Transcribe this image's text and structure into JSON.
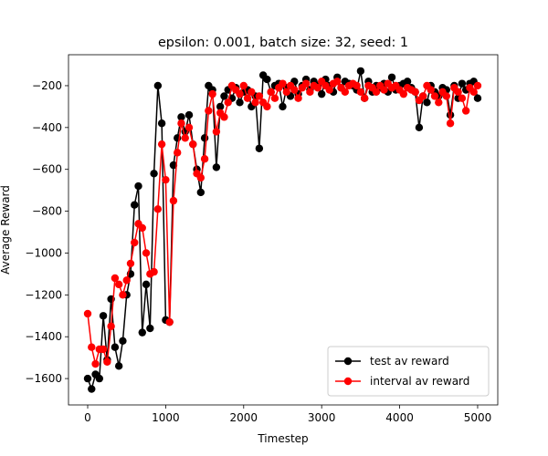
{
  "chart_data": {
    "type": "line",
    "title": "epsilon: 0.001, batch size: 32, seed: 1",
    "x_label": "Timestep",
    "y_label": "Average Reward",
    "x": [
      0,
      50,
      100,
      150,
      200,
      250,
      300,
      350,
      400,
      450,
      500,
      550,
      600,
      650,
      700,
      750,
      800,
      850,
      900,
      950,
      1000,
      1050,
      1100,
      1150,
      1200,
      1250,
      1300,
      1350,
      1400,
      1450,
      1500,
      1550,
      1600,
      1650,
      1700,
      1750,
      1800,
      1850,
      1900,
      1950,
      2000,
      2050,
      2100,
      2150,
      2200,
      2250,
      2300,
      2350,
      2400,
      2450,
      2500,
      2550,
      2600,
      2650,
      2700,
      2750,
      2800,
      2850,
      2900,
      2950,
      3000,
      3050,
      3100,
      3150,
      3200,
      3250,
      3300,
      3350,
      3400,
      3450,
      3500,
      3550,
      3600,
      3650,
      3700,
      3750,
      3800,
      3850,
      3900,
      3950,
      4000,
      4050,
      4100,
      4150,
      4200,
      4250,
      4300,
      4350,
      4400,
      4450,
      4500,
      4550,
      4600,
      4650,
      4700,
      4750,
      4800,
      4850,
      4900,
      4950,
      5000
    ],
    "series": [
      {
        "name": "test av reward",
        "color": "#000000",
        "values": [
          -1600,
          -1650,
          -1580,
          -1600,
          -1300,
          -1510,
          -1220,
          -1450,
          -1540,
          -1420,
          -1200,
          -1100,
          -770,
          -680,
          -1380,
          -1150,
          -1360,
          -620,
          -200,
          -380,
          -1320,
          -1330,
          -580,
          -450,
          -350,
          -420,
          -340,
          -480,
          -600,
          -710,
          -450,
          -200,
          -220,
          -590,
          -300,
          -250,
          -220,
          -260,
          -210,
          -280,
          -230,
          -220,
          -300,
          -250,
          -500,
          -150,
          -170,
          -230,
          -200,
          -190,
          -300,
          -210,
          -250,
          -180,
          -240,
          -200,
          -170,
          -220,
          -180,
          -200,
          -240,
          -170,
          -200,
          -230,
          -160,
          -210,
          -180,
          -190,
          -200,
          -220,
          -130,
          -260,
          -180,
          -230,
          -200,
          -210,
          -190,
          -230,
          -160,
          -220,
          -200,
          -190,
          -180,
          -210,
          -230,
          -400,
          -250,
          -280,
          -200,
          -230,
          -250,
          -210,
          -220,
          -340,
          -200,
          -260,
          -190,
          -220,
          -190,
          -180,
          -260
        ]
      },
      {
        "name": "interval av reward",
        "color": "#ff0000",
        "values": [
          -1290,
          -1450,
          -1530,
          -1460,
          -1460,
          -1520,
          -1350,
          -1120,
          -1150,
          -1200,
          -1130,
          -1050,
          -950,
          -860,
          -880,
          -1000,
          -1100,
          -1090,
          -790,
          -480,
          -650,
          -1330,
          -750,
          -520,
          -380,
          -450,
          -400,
          -480,
          -620,
          -640,
          -550,
          -320,
          -240,
          -420,
          -330,
          -350,
          -280,
          -200,
          -220,
          -240,
          -200,
          -260,
          -230,
          -280,
          -250,
          -280,
          -300,
          -230,
          -260,
          -210,
          -190,
          -230,
          -200,
          -220,
          -260,
          -210,
          -190,
          -230,
          -200,
          -210,
          -180,
          -200,
          -220,
          -190,
          -180,
          -210,
          -230,
          -200,
          -190,
          -200,
          -230,
          -260,
          -200,
          -210,
          -230,
          -200,
          -220,
          -190,
          -210,
          -200,
          -220,
          -240,
          -210,
          -220,
          -230,
          -270,
          -250,
          -200,
          -220,
          -250,
          -280,
          -230,
          -250,
          -380,
          -210,
          -230,
          -260,
          -320,
          -210,
          -230,
          -200
        ]
      }
    ],
    "xlim": [
      -246,
      5258
    ],
    "ylim": [
      -1726,
      -52
    ],
    "xticks": [
      0,
      1000,
      2000,
      3000,
      4000,
      5000
    ],
    "yticks": [
      {
        "value": -1600,
        "label": "−1600"
      },
      {
        "value": -1400,
        "label": "−1400"
      },
      {
        "value": -1200,
        "label": "−1200"
      },
      {
        "value": -1000,
        "label": "−1000"
      },
      {
        "value": -800,
        "label": "−800"
      },
      {
        "value": -600,
        "label": "−600"
      },
      {
        "value": -400,
        "label": "−400"
      },
      {
        "value": -200,
        "label": "−200"
      }
    ],
    "legend": "lower right",
    "markers": true
  }
}
